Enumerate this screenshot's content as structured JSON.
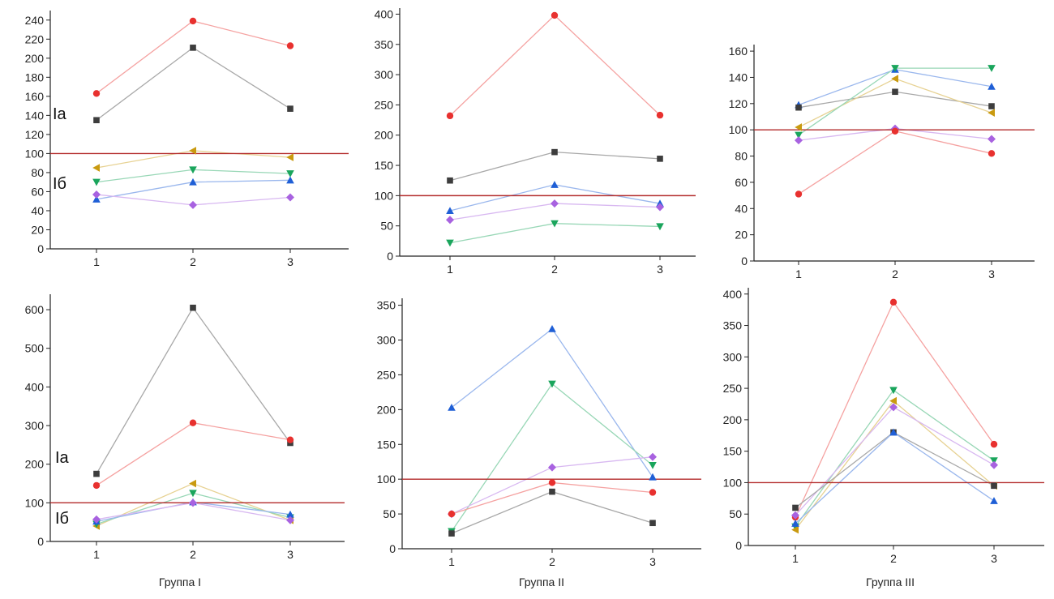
{
  "chart_data": [
    {
      "type": "line",
      "panel": "top-left",
      "ylim": [
        0,
        250
      ],
      "yticks": [
        0,
        20,
        40,
        60,
        80,
        100,
        120,
        140,
        160,
        180,
        200,
        220,
        240
      ],
      "categories": [
        "1",
        "2",
        "3"
      ],
      "reference_line": 100,
      "zone_labels": [
        "Ia",
        "Iб"
      ],
      "series": [
        {
          "color": "#e8312f",
          "marker": "circle",
          "values": [
            163,
            239,
            213
          ]
        },
        {
          "color": "#3d3d3d",
          "marker": "square",
          "values": [
            135,
            211,
            147
          ]
        },
        {
          "color": "#c99a10",
          "marker": "triangle-left",
          "values": [
            85,
            103,
            96
          ]
        },
        {
          "color": "#1aa55c",
          "marker": "triangle-down",
          "values": [
            70,
            83,
            79
          ]
        },
        {
          "color": "#1f5fd6",
          "marker": "triangle-up",
          "values": [
            52,
            70,
            72
          ]
        },
        {
          "color": "#a862e0",
          "marker": "diamond",
          "values": [
            57,
            46,
            54
          ]
        }
      ]
    },
    {
      "type": "line",
      "panel": "top-middle",
      "ylim": [
        0,
        410
      ],
      "yticks": [
        0,
        50,
        100,
        150,
        200,
        250,
        300,
        350,
        400
      ],
      "categories": [
        "1",
        "2",
        "3"
      ],
      "reference_line": 100,
      "series": [
        {
          "color": "#e8312f",
          "marker": "circle",
          "values": [
            232,
            398,
            233
          ]
        },
        {
          "color": "#3d3d3d",
          "marker": "square",
          "values": [
            125,
            172,
            161
          ]
        },
        {
          "color": "#1f5fd6",
          "marker": "triangle-up",
          "values": [
            75,
            118,
            87
          ]
        },
        {
          "color": "#a862e0",
          "marker": "diamond",
          "values": [
            60,
            87,
            81
          ]
        },
        {
          "color": "#1aa55c",
          "marker": "triangle-down",
          "values": [
            22,
            54,
            49
          ]
        }
      ]
    },
    {
      "type": "line",
      "panel": "top-right",
      "ylim": [
        0,
        165
      ],
      "yticks": [
        0,
        20,
        40,
        60,
        80,
        100,
        120,
        140,
        160
      ],
      "categories": [
        "1",
        "2",
        "3"
      ],
      "reference_line": 100,
      "series": [
        {
          "color": "#1f5fd6",
          "marker": "triangle-up",
          "values": [
            119,
            146,
            133
          ]
        },
        {
          "color": "#3d3d3d",
          "marker": "square",
          "values": [
            117,
            129,
            118
          ]
        },
        {
          "color": "#c99a10",
          "marker": "triangle-left",
          "values": [
            102,
            139,
            113
          ]
        },
        {
          "color": "#1aa55c",
          "marker": "triangle-down",
          "values": [
            96,
            147,
            147
          ]
        },
        {
          "color": "#a862e0",
          "marker": "diamond",
          "values": [
            92,
            101,
            93
          ]
        },
        {
          "color": "#e8312f",
          "marker": "circle",
          "values": [
            51,
            99,
            82
          ]
        }
      ]
    },
    {
      "type": "line",
      "panel": "bottom-left",
      "ylim": [
        0,
        640
      ],
      "yticks": [
        0,
        100,
        200,
        300,
        400,
        500,
        600
      ],
      "categories": [
        "1",
        "2",
        "3"
      ],
      "reference_line": 100,
      "xlabel": "Группа I",
      "zone_labels": [
        "Ia",
        "Iб"
      ],
      "series": [
        {
          "color": "#3d3d3d",
          "marker": "square",
          "values": [
            175,
            605,
            255
          ]
        },
        {
          "color": "#e8312f",
          "marker": "circle",
          "values": [
            145,
            307,
            263
          ]
        },
        {
          "color": "#c99a10",
          "marker": "triangle-left",
          "values": [
            40,
            150,
            55
          ]
        },
        {
          "color": "#1aa55c",
          "marker": "triangle-down",
          "values": [
            45,
            125,
            62
          ]
        },
        {
          "color": "#1f5fd6",
          "marker": "triangle-up",
          "values": [
            52,
            102,
            70
          ]
        },
        {
          "color": "#a862e0",
          "marker": "diamond",
          "values": [
            57,
            100,
            55
          ]
        }
      ]
    },
    {
      "type": "line",
      "panel": "bottom-middle",
      "ylim": [
        0,
        360
      ],
      "yticks": [
        0,
        50,
        100,
        150,
        200,
        250,
        300,
        350
      ],
      "categories": [
        "1",
        "2",
        "3"
      ],
      "reference_line": 100,
      "xlabel": "Группа II",
      "series": [
        {
          "color": "#1f5fd6",
          "marker": "triangle-up",
          "values": [
            203,
            316,
            103
          ]
        },
        {
          "color": "#1aa55c",
          "marker": "triangle-down",
          "values": [
            25,
            237,
            120
          ]
        },
        {
          "color": "#a862e0",
          "marker": "diamond",
          "values": [
            50,
            117,
            132
          ]
        },
        {
          "color": "#e8312f",
          "marker": "circle",
          "values": [
            50,
            95,
            81
          ]
        },
        {
          "color": "#3d3d3d",
          "marker": "square",
          "values": [
            22,
            82,
            37
          ]
        }
      ]
    },
    {
      "type": "line",
      "panel": "bottom-right",
      "ylim": [
        0,
        410
      ],
      "yticks": [
        0,
        50,
        100,
        150,
        200,
        250,
        300,
        350,
        400
      ],
      "categories": [
        "1",
        "2",
        "3"
      ],
      "reference_line": 100,
      "xlabel": "Группа III",
      "series": [
        {
          "color": "#e8312f",
          "marker": "circle",
          "values": [
            45,
            387,
            161
          ]
        },
        {
          "color": "#1aa55c",
          "marker": "triangle-down",
          "values": [
            30,
            247,
            135
          ]
        },
        {
          "color": "#c99a10",
          "marker": "triangle-left",
          "values": [
            25,
            230,
            95
          ]
        },
        {
          "color": "#a862e0",
          "marker": "diamond",
          "values": [
            48,
            220,
            128
          ]
        },
        {
          "color": "#3d3d3d",
          "marker": "square",
          "values": [
            60,
            180,
            95
          ]
        },
        {
          "color": "#1f5fd6",
          "marker": "triangle-up",
          "values": [
            35,
            180,
            71
          ]
        }
      ]
    }
  ]
}
